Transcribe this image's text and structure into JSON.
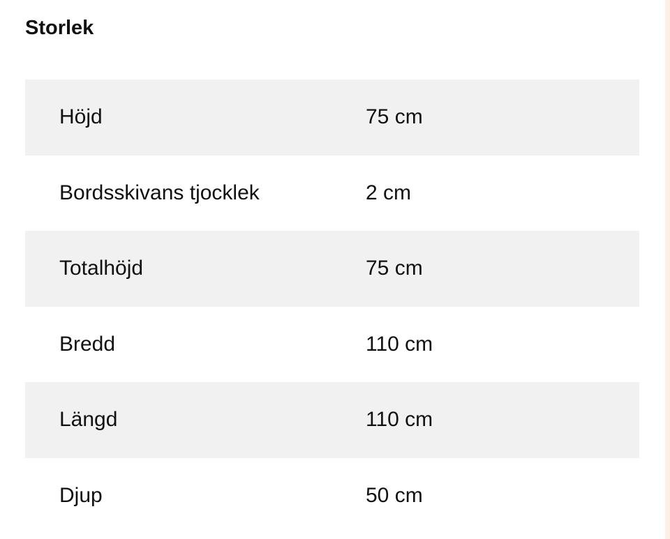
{
  "section": {
    "title": "Storlek"
  },
  "rows": [
    {
      "label": "Höjd",
      "value": "75 cm"
    },
    {
      "label": "Bordsskivans tjocklek",
      "value": "2 cm"
    },
    {
      "label": "Totalhöjd",
      "value": "75 cm"
    },
    {
      "label": "Bredd",
      "value": "110 cm"
    },
    {
      "label": "Längd",
      "value": "110 cm"
    },
    {
      "label": "Djup",
      "value": "50 cm"
    }
  ],
  "colors": {
    "row_stripe": "#f1f1f1",
    "edge_strip": "#fcefe6"
  }
}
